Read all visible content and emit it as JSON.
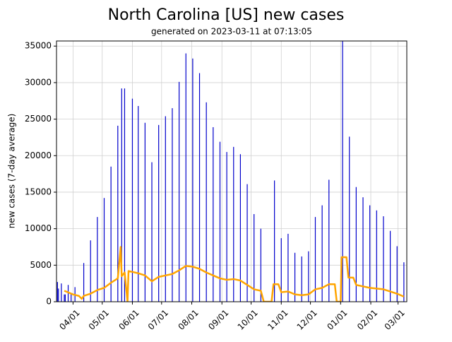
{
  "chart_data": {
    "type": "bar",
    "title": "North Carolina [US] new cases",
    "subtitle": "generated on 2023-03-11 at 07:13:05",
    "ylabel": "new cases (7-day average)",
    "grid": true,
    "xlim": [
      "03/15",
      "03/10"
    ],
    "xticks": [
      "04/01",
      "05/01",
      "06/01",
      "07/01",
      "08/01",
      "09/01",
      "10/01",
      "11/01",
      "12/01",
      "01/01",
      "02/01",
      "03/01"
    ],
    "ylim": [
      0,
      35700
    ],
    "yticks": [
      0,
      5000,
      10000,
      15000,
      20000,
      25000,
      30000,
      35000
    ],
    "series": [
      {
        "type": "bar",
        "color": "#0000cc",
        "x": [
          "03/16",
          "03/17",
          "03/20",
          "03/23",
          "03/24",
          "03/27",
          "03/30",
          "04/03",
          "04/12",
          "04/19",
          "04/26",
          "05/03",
          "05/10",
          "05/17",
          "05/21",
          "05/24",
          "06/01",
          "06/07",
          "06/14",
          "06/21",
          "06/28",
          "07/05",
          "07/12",
          "07/19",
          "07/26",
          "08/02",
          "08/09",
          "08/16",
          "08/23",
          "08/30",
          "09/06",
          "09/13",
          "09/20",
          "09/27",
          "10/04",
          "10/11",
          "10/25",
          "11/01",
          "11/08",
          "11/15",
          "11/22",
          "11/29",
          "12/06",
          "12/13",
          "12/20",
          "01/03",
          "01/10",
          "01/17",
          "01/24",
          "01/31",
          "02/07",
          "02/14",
          "02/21",
          "02/28",
          "03/07"
        ],
        "values": [
          2700,
          1800,
          2500,
          1000,
          1000,
          2300,
          1100,
          2000,
          5300,
          8400,
          11600,
          14200,
          18500,
          24100,
          29200,
          29200,
          27800,
          26800,
          24500,
          19100,
          24200,
          25400,
          26500,
          30100,
          34000,
          33300,
          31300,
          27300,
          23900,
          21900,
          20500,
          21200,
          20200,
          16100,
          12000,
          10000,
          16600,
          8700,
          9300,
          6700,
          6200,
          6900,
          11600,
          13200,
          16700,
          35700,
          22600,
          15700,
          14300,
          13200,
          12500,
          11700,
          9700,
          7600,
          5400
        ]
      },
      {
        "type": "line",
        "color": "#ffa500",
        "x": [
          "03/23",
          "04/01",
          "04/07",
          "04/10",
          "04/12",
          "04/19",
          "04/26",
          "05/03",
          "05/10",
          "05/17",
          "05/20",
          "05/21",
          "05/24",
          "05/27",
          "05/28",
          "06/07",
          "06/14",
          "06/21",
          "06/28",
          "07/05",
          "07/12",
          "07/19",
          "07/26",
          "08/02",
          "08/09",
          "08/16",
          "08/23",
          "08/30",
          "09/06",
          "09/13",
          "09/20",
          "09/27",
          "10/04",
          "10/11",
          "10/14",
          "10/22",
          "10/24",
          "10/29",
          "11/01",
          "11/08",
          "11/15",
          "11/22",
          "11/29",
          "12/06",
          "12/13",
          "12/20",
          "12/26",
          "12/28",
          "01/01",
          "01/02",
          "01/07",
          "01/09",
          "01/14",
          "01/17",
          "01/24",
          "01/31",
          "02/07",
          "02/14",
          "02/21",
          "02/28",
          "03/07"
        ],
        "values": [
          1500,
          1000,
          800,
          400,
          800,
          1100,
          1600,
          1900,
          2600,
          3200,
          7500,
          3500,
          4000,
          0,
          4200,
          3900,
          3600,
          2800,
          3400,
          3600,
          3800,
          4300,
          4900,
          4800,
          4500,
          4000,
          3600,
          3200,
          3000,
          3100,
          2900,
          2300,
          1700,
          1500,
          0,
          0,
          2400,
          2400,
          1300,
          1400,
          1000,
          900,
          1000,
          1700,
          1900,
          2400,
          2400,
          0,
          0,
          6100,
          6100,
          3300,
          3300,
          2300,
          2100,
          1900,
          1800,
          1700,
          1400,
          1100,
          700
        ]
      }
    ]
  }
}
